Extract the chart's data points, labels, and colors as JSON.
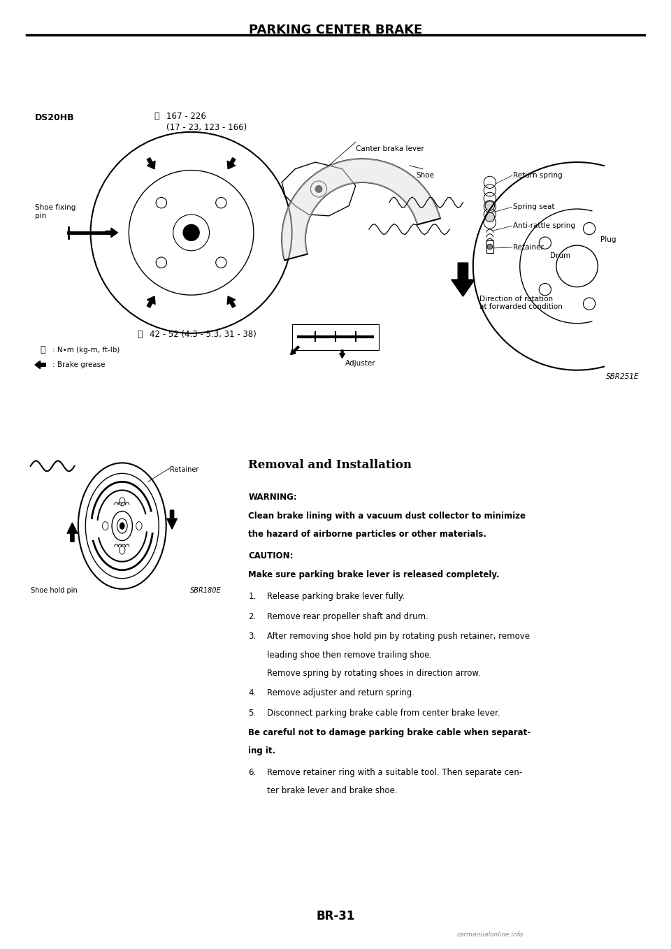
{
  "page_title": "PARKING CENTER BRAKE",
  "page_number": "BR-31",
  "background_color": "#ffffff",
  "main_diagram": {
    "ds20hb": "DS20HB",
    "torque1": "167 - 226",
    "torque1b": "(17 - 23, 123 - 166)",
    "torque2": "42 - 52 (4.3 - 5.3, 31 - 38)",
    "shoe_fixing": "Shoe fixing\npin",
    "canter": "Canter braka lever",
    "shoe": "Shoe",
    "return_spring": "Return spring",
    "spring_seat": "Spring seat",
    "anti_rattle": "Anti-rattle spring",
    "retainer": "Retainer",
    "drum": "Drum",
    "plug": "Plug",
    "adjuster": "Adjuster",
    "direction": "Direction of rotation\nat forwarded condition",
    "legend1": ": N•m (kg-m, ft-lb)",
    "legend2": ": Brake grease",
    "sbr251e": "SBR251E"
  },
  "bottom_diagram": {
    "retainer": "Retainer",
    "shoe_hold": "Shoe hold pin",
    "sbr180e": "SBR180E"
  },
  "removal": {
    "title": "Removal and Installation",
    "warning_label": "WARNING:",
    "warning_text": "Clean brake lining with a vacuum dust collector to minimize\nthe hazard of airborne particles or other materials.",
    "caution_label": "CAUTION:",
    "caution_text": "Make sure parking brake lever is released completely.",
    "step1": "Release parking brake lever fully.",
    "step2": "Remove rear propeller shaft and drum.",
    "step3a": "After removing shoe hold pin by rotating push retainer, remove",
    "step3b": "leading shoe then remove trailing shoe.",
    "step3c": "Remove spring by rotating shoes in direction arrow.",
    "step4": "Remove adjuster and return spring.",
    "step5": "Disconnect parking brake cable from center brake lever.",
    "bold1": "Be careful not to damage parking brake cable when separat-",
    "bold2": "ing it.",
    "step6a": "Remove retainer ring with a suitable tool. Then separate cen-",
    "step6b": "ter brake lever and brake shoe."
  }
}
